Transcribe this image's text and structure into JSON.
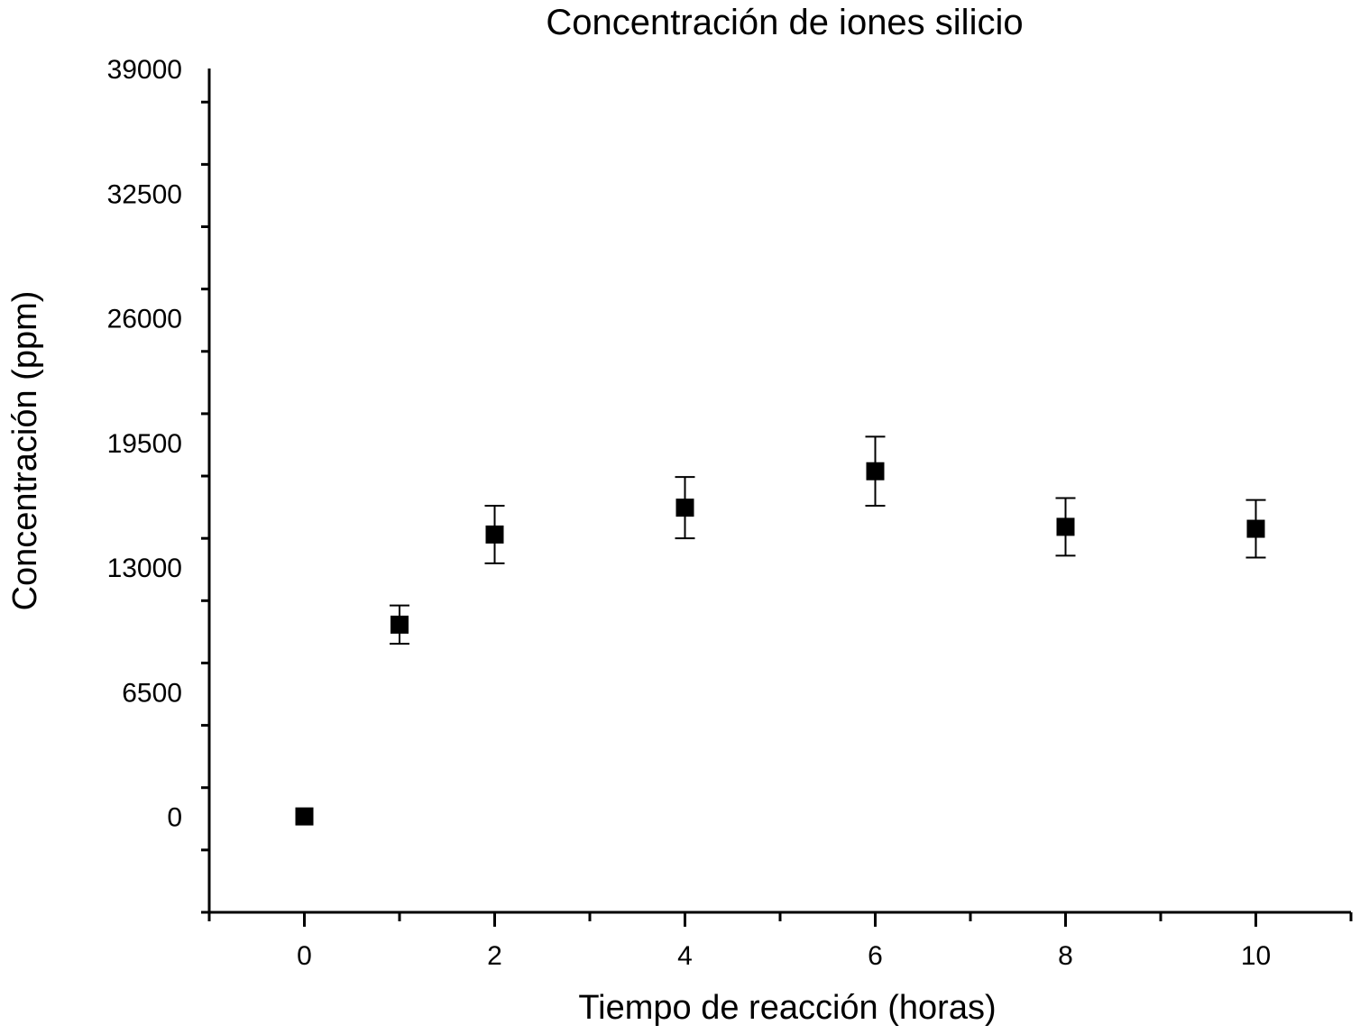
{
  "chart_data": {
    "type": "scatter",
    "title": "Concentración de iones silicio",
    "xlabel": "Tiempo de reacción (horas)",
    "ylabel": "Concentración (ppm)",
    "xlim": [
      -1,
      11
    ],
    "ylim": [
      -5000,
      39000
    ],
    "xticks": [
      0,
      2,
      4,
      6,
      8,
      10
    ],
    "yticks": [
      0,
      6500,
      13000,
      19500,
      26000,
      32500,
      39000
    ],
    "xtick_labels": [
      "0",
      "2",
      "4",
      "6",
      "8",
      "10"
    ],
    "ytick_labels": [
      "0",
      "6500",
      "13000",
      "19500",
      "26000",
      "32500",
      "39000"
    ],
    "grid": false,
    "series": [
      {
        "marker": "square",
        "color": "#000000",
        "points": [
          {
            "x": 0,
            "y": 0,
            "err": 0
          },
          {
            "x": 1,
            "y": 10000,
            "err": 1000
          },
          {
            "x": 2,
            "y": 14700,
            "err": 1500
          },
          {
            "x": 4,
            "y": 16100,
            "err": 1600
          },
          {
            "x": 6,
            "y": 18000,
            "err": 1800
          },
          {
            "x": 8,
            "y": 15100,
            "err": 1500
          },
          {
            "x": 10,
            "y": 15000,
            "err": 1500
          }
        ]
      }
    ]
  }
}
